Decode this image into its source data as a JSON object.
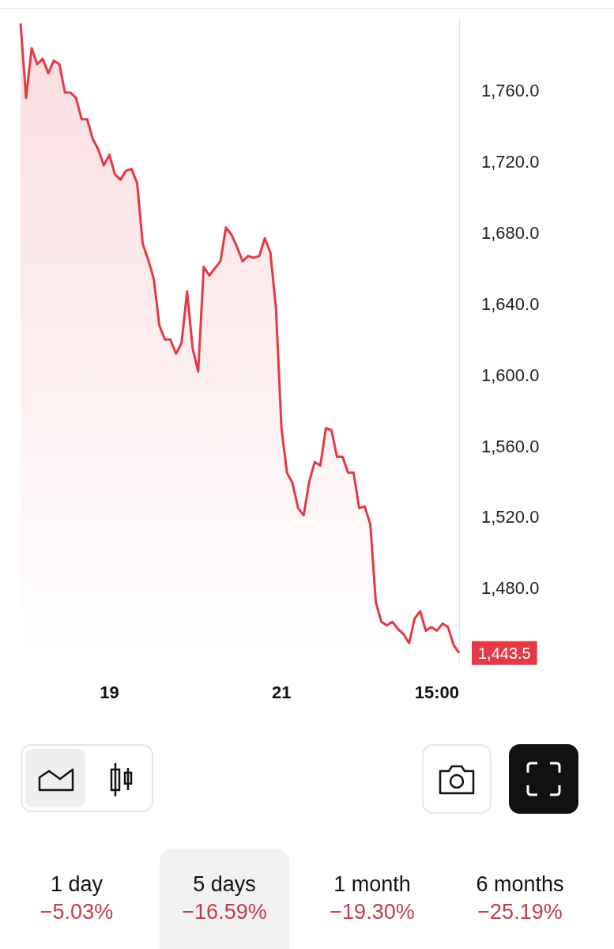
{
  "chart_data": {
    "type": "area",
    "categories": [
      null,
      null,
      null,
      null,
      null,
      null,
      null,
      null,
      null,
      null,
      null,
      null,
      null,
      null,
      null,
      null,
      "19",
      null,
      null,
      null,
      null,
      null,
      null,
      null,
      null,
      null,
      null,
      null,
      null,
      null,
      null,
      null,
      null,
      null,
      null,
      null,
      null,
      null,
      null,
      null,
      null,
      null,
      null,
      null,
      null,
      null,
      null,
      "21",
      null,
      null,
      null,
      null,
      null,
      null,
      null,
      null,
      null,
      null,
      null,
      null,
      null,
      null,
      null,
      null,
      null,
      null,
      null,
      null,
      null,
      null,
      null,
      null,
      null,
      null,
      null,
      "15:00",
      null,
      null,
      null,
      null
    ],
    "yticks": [
      {
        "value": 1480,
        "label": "1,480.0"
      },
      {
        "value": 1520,
        "label": "1,520.0"
      },
      {
        "value": 1560,
        "label": "1,560.0"
      },
      {
        "value": 1600,
        "label": "1,600.0"
      },
      {
        "value": 1640,
        "label": "1,640.0"
      },
      {
        "value": 1680,
        "label": "1,680.0"
      },
      {
        "value": 1720,
        "label": "1,720.0"
      },
      {
        "value": 1760,
        "label": "1,760.0"
      }
    ],
    "ylim": [
      1438,
      1800
    ],
    "grid": false,
    "marker": "none",
    "line_style": "solid",
    "annotations": [
      "1 day",
      "−5.03%",
      "5 days",
      "−16.59%",
      "1 month",
      "−19.30%",
      "6 months",
      "−25.19%"
    ],
    "series": [
      {
        "color": "#e53946",
        "values": [
          1798,
          1756,
          1784,
          1775,
          1778,
          1770,
          1777,
          1775,
          1759,
          1759,
          1756,
          1744,
          1744,
          1733,
          1727,
          1718,
          1724,
          1713,
          1710,
          1715,
          1716,
          1708,
          1674,
          1665,
          1654,
          1628,
          1620,
          1620,
          1612,
          1618,
          1647,
          1615,
          1602,
          1661,
          1656,
          1660,
          1664,
          1683,
          1679,
          1672,
          1664,
          1667,
          1666,
          1667,
          1677,
          1669,
          1638,
          1570,
          1545,
          1539,
          1525,
          1521,
          1540,
          1551,
          1549,
          1570,
          1569,
          1554,
          1554,
          1545,
          1545,
          1525,
          1526,
          1516,
          1472,
          1461,
          1459,
          1461,
          1457,
          1454,
          1449,
          1463,
          1467,
          1456,
          1458,
          1456,
          1460,
          1458,
          1448,
          1443.5
        ],
        "value_labels": [
          null,
          null,
          null,
          null,
          null,
          null,
          null,
          null,
          null,
          null,
          null,
          null,
          null,
          null,
          null,
          null,
          null,
          null,
          null,
          null,
          null,
          null,
          null,
          null,
          null,
          null,
          null,
          null,
          null,
          null,
          null,
          null,
          null,
          null,
          null,
          null,
          null,
          null,
          null,
          null,
          null,
          null,
          null,
          null,
          null,
          null,
          null,
          null,
          null,
          null,
          null,
          null,
          null,
          null,
          null,
          null,
          null,
          null,
          null,
          null,
          null,
          null,
          null,
          null,
          null,
          null,
          null,
          null,
          null,
          null,
          null,
          null,
          null,
          null,
          null,
          null,
          null,
          null,
          null,
          "1,443.5"
        ]
      }
    ]
  }
}
